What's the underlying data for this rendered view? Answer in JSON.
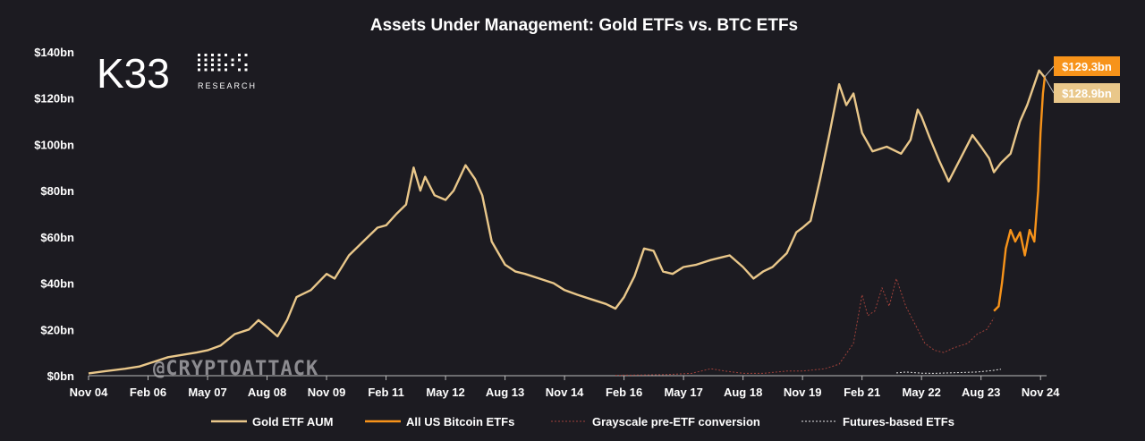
{
  "brand": {
    "logo_text": "K33",
    "logo_sub": "RESEARCH",
    "watermark": "@CRYPTOATTACK"
  },
  "colors": {
    "gold": "#e9c78a",
    "btc": "#f7931a",
    "grayscale": "#a0413a",
    "futures": "#e6e6e6",
    "background": "#1c1b21"
  },
  "chart_data": {
    "type": "line",
    "title": "Assets Under Management: Gold ETFs vs. BTC ETFs",
    "xlabel": "",
    "ylabel": "",
    "xlim": [
      2004.83,
      2024.92
    ],
    "ylim": [
      0,
      140
    ],
    "x_ticks": [
      {
        "label": "Nov 04",
        "t": 2004.83
      },
      {
        "label": "Feb 06",
        "t": 2006.08
      },
      {
        "label": "May 07",
        "t": 2007.33
      },
      {
        "label": "Aug 08",
        "t": 2008.58
      },
      {
        "label": "Nov 09",
        "t": 2009.83
      },
      {
        "label": "Feb 11",
        "t": 2011.08
      },
      {
        "label": "May 12",
        "t": 2012.33
      },
      {
        "label": "Aug 13",
        "t": 2013.58
      },
      {
        "label": "Nov 14",
        "t": 2014.83
      },
      {
        "label": "Feb 16",
        "t": 2016.08
      },
      {
        "label": "May 17",
        "t": 2017.33
      },
      {
        "label": "Aug 18",
        "t": 2018.58
      },
      {
        "label": "Nov 19",
        "t": 2019.83
      },
      {
        "label": "Feb 21",
        "t": 2021.08
      },
      {
        "label": "May 22",
        "t": 2022.33
      },
      {
        "label": "Aug 23",
        "t": 2023.58
      },
      {
        "label": "Nov 24",
        "t": 2024.83
      }
    ],
    "y_ticks": [
      {
        "label": "$0bn",
        "v": 0
      },
      {
        "label": "$20bn",
        "v": 20
      },
      {
        "label": "$40bn",
        "v": 40
      },
      {
        "label": "$60bn",
        "v": 60
      },
      {
        "label": "$80bn",
        "v": 80
      },
      {
        "label": "$100bn",
        "v": 100
      },
      {
        "label": "$120bn",
        "v": 120
      },
      {
        "label": "$140bn",
        "v": 140
      }
    ],
    "legend_position": "bottom",
    "series": [
      {
        "name": "Gold ETF AUM",
        "color": "#e9c78a",
        "style": "solid",
        "points": [
          [
            2004.83,
            1
          ],
          [
            2005.2,
            2
          ],
          [
            2005.6,
            3
          ],
          [
            2005.9,
            4
          ],
          [
            2006.2,
            6
          ],
          [
            2006.5,
            8
          ],
          [
            2006.8,
            9
          ],
          [
            2007.1,
            10
          ],
          [
            2007.33,
            11
          ],
          [
            2007.6,
            13
          ],
          [
            2007.9,
            18
          ],
          [
            2008.2,
            20
          ],
          [
            2008.4,
            24
          ],
          [
            2008.58,
            21
          ],
          [
            2008.8,
            17
          ],
          [
            2009.0,
            24
          ],
          [
            2009.2,
            34
          ],
          [
            2009.5,
            37
          ],
          [
            2009.83,
            44
          ],
          [
            2010.0,
            42
          ],
          [
            2010.3,
            52
          ],
          [
            2010.6,
            58
          ],
          [
            2010.9,
            64
          ],
          [
            2011.08,
            65
          ],
          [
            2011.3,
            70
          ],
          [
            2011.5,
            74
          ],
          [
            2011.66,
            90
          ],
          [
            2011.8,
            80
          ],
          [
            2011.9,
            86
          ],
          [
            2012.1,
            78
          ],
          [
            2012.33,
            76
          ],
          [
            2012.5,
            80
          ],
          [
            2012.75,
            91
          ],
          [
            2012.95,
            85
          ],
          [
            2013.1,
            78
          ],
          [
            2013.3,
            58
          ],
          [
            2013.58,
            48
          ],
          [
            2013.8,
            45
          ],
          [
            2014.0,
            44
          ],
          [
            2014.3,
            42
          ],
          [
            2014.6,
            40
          ],
          [
            2014.83,
            37
          ],
          [
            2015.1,
            35
          ],
          [
            2015.4,
            33
          ],
          [
            2015.7,
            31
          ],
          [
            2015.9,
            29
          ],
          [
            2016.08,
            34
          ],
          [
            2016.3,
            43
          ],
          [
            2016.5,
            55
          ],
          [
            2016.7,
            54
          ],
          [
            2016.9,
            45
          ],
          [
            2017.1,
            44
          ],
          [
            2017.33,
            47
          ],
          [
            2017.6,
            48
          ],
          [
            2017.9,
            50
          ],
          [
            2018.1,
            51
          ],
          [
            2018.3,
            52
          ],
          [
            2018.58,
            47
          ],
          [
            2018.8,
            42
          ],
          [
            2019.0,
            45
          ],
          [
            2019.2,
            47
          ],
          [
            2019.5,
            53
          ],
          [
            2019.7,
            62
          ],
          [
            2019.83,
            64
          ],
          [
            2020.0,
            67
          ],
          [
            2020.2,
            85
          ],
          [
            2020.4,
            105
          ],
          [
            2020.6,
            126
          ],
          [
            2020.75,
            117
          ],
          [
            2020.9,
            122
          ],
          [
            2021.08,
            105
          ],
          [
            2021.3,
            97
          ],
          [
            2021.6,
            99
          ],
          [
            2021.9,
            96
          ],
          [
            2022.1,
            102
          ],
          [
            2022.25,
            115
          ],
          [
            2022.33,
            112
          ],
          [
            2022.5,
            103
          ],
          [
            2022.7,
            93
          ],
          [
            2022.9,
            84
          ],
          [
            2023.1,
            92
          ],
          [
            2023.3,
            100
          ],
          [
            2023.4,
            104
          ],
          [
            2023.58,
            99
          ],
          [
            2023.75,
            94
          ],
          [
            2023.85,
            88
          ],
          [
            2024.0,
            92
          ],
          [
            2024.2,
            96
          ],
          [
            2024.4,
            110
          ],
          [
            2024.55,
            117
          ],
          [
            2024.7,
            126
          ],
          [
            2024.8,
            132
          ],
          [
            2024.92,
            128.9
          ]
        ]
      },
      {
        "name": "All US Bitcoin ETFs",
        "color": "#f7931a",
        "style": "solid",
        "points": [
          [
            2023.85,
            28
          ],
          [
            2023.95,
            30
          ],
          [
            2024.02,
            40
          ],
          [
            2024.1,
            55
          ],
          [
            2024.2,
            63
          ],
          [
            2024.3,
            58
          ],
          [
            2024.4,
            62
          ],
          [
            2024.5,
            52
          ],
          [
            2024.6,
            63
          ],
          [
            2024.7,
            58
          ],
          [
            2024.78,
            80
          ],
          [
            2024.83,
            105
          ],
          [
            2024.88,
            122
          ],
          [
            2024.92,
            129.3
          ]
        ]
      },
      {
        "name": "Grayscale pre-ETF conversion",
        "color": "#a0413a",
        "style": "dashed",
        "points": [
          [
            2015.9,
            0.2
          ],
          [
            2016.5,
            0.3
          ],
          [
            2017.0,
            0.5
          ],
          [
            2017.5,
            1
          ],
          [
            2017.9,
            3
          ],
          [
            2018.2,
            2
          ],
          [
            2018.6,
            1
          ],
          [
            2019.0,
            1
          ],
          [
            2019.5,
            2
          ],
          [
            2019.83,
            2
          ],
          [
            2020.3,
            3
          ],
          [
            2020.6,
            5
          ],
          [
            2020.9,
            14
          ],
          [
            2021.08,
            35
          ],
          [
            2021.2,
            26
          ],
          [
            2021.35,
            28
          ],
          [
            2021.5,
            38
          ],
          [
            2021.65,
            30
          ],
          [
            2021.8,
            42
          ],
          [
            2022.0,
            30
          ],
          [
            2022.2,
            22
          ],
          [
            2022.4,
            14
          ],
          [
            2022.6,
            11
          ],
          [
            2022.8,
            10
          ],
          [
            2023.0,
            12
          ],
          [
            2023.3,
            14
          ],
          [
            2023.5,
            18
          ],
          [
            2023.7,
            20
          ],
          [
            2023.85,
            25
          ]
        ]
      },
      {
        "name": "Futures-based ETFs",
        "color": "#e6e6e6",
        "style": "dashed",
        "points": [
          [
            2021.8,
            1.2
          ],
          [
            2022.0,
            1.6
          ],
          [
            2022.33,
            1.1
          ],
          [
            2022.6,
            1.0
          ],
          [
            2022.9,
            1.2
          ],
          [
            2023.2,
            1.4
          ],
          [
            2023.5,
            1.6
          ],
          [
            2023.8,
            2.2
          ],
          [
            2024.0,
            2.8
          ]
        ]
      }
    ],
    "callouts": [
      {
        "label": "$129.3bn",
        "value": 129.3,
        "color": "#f7931a"
      },
      {
        "label": "$128.9bn",
        "value": 128.9,
        "color": "#e9c78a"
      }
    ]
  }
}
